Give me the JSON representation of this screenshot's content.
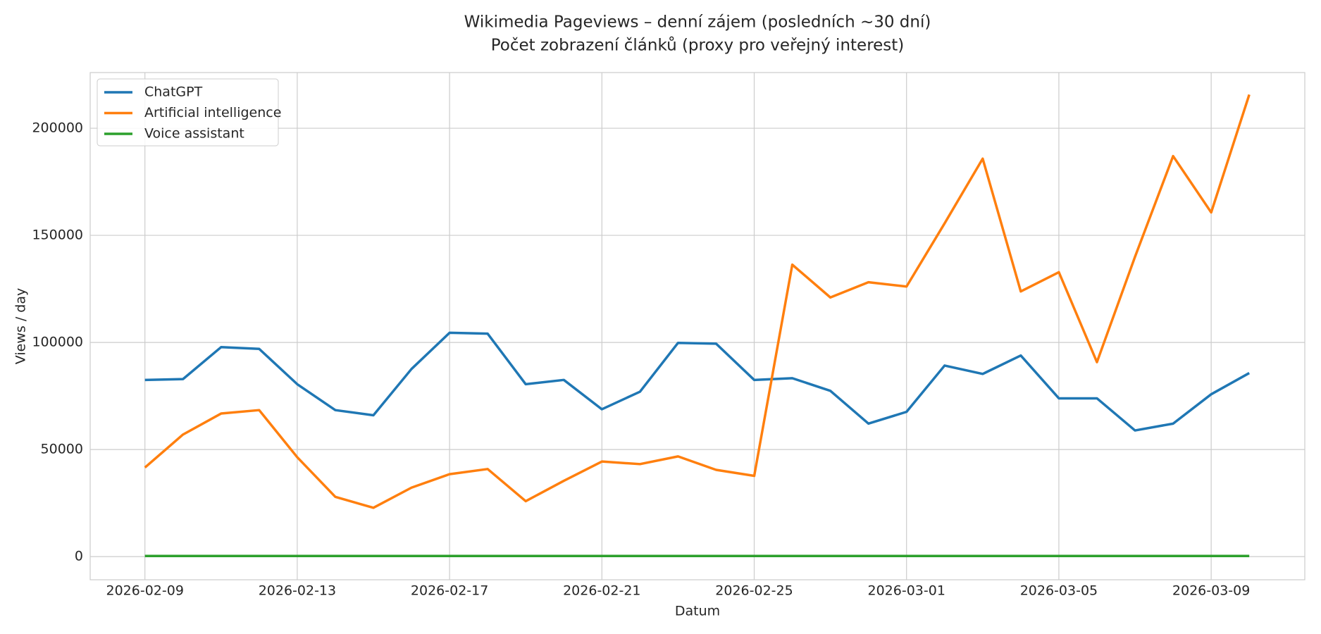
{
  "chart_data": {
    "type": "line",
    "title": "Wikimedia Pageviews – denní zájem (posledních ~30 dní)",
    "subtitle": "Počet zobrazení článků (proxy pro veřejný interest)",
    "x_label": "Datum",
    "y_label": "Views / day",
    "x": [
      "2026-02-09",
      "2026-02-10",
      "2026-02-11",
      "2026-02-12",
      "2026-02-13",
      "2026-02-14",
      "2026-02-15",
      "2026-02-16",
      "2026-02-17",
      "2026-02-18",
      "2026-02-19",
      "2026-02-20",
      "2026-02-21",
      "2026-02-22",
      "2026-02-23",
      "2026-02-24",
      "2026-02-25",
      "2026-02-26",
      "2026-02-27",
      "2026-02-28",
      "2026-03-01",
      "2026-03-02",
      "2026-03-03",
      "2026-03-04",
      "2026-03-05",
      "2026-03-06",
      "2026-03-07",
      "2026-03-08",
      "2026-03-09",
      "2026-03-10"
    ],
    "series": [
      {
        "name": "ChatGPT",
        "color": "#1f77b4",
        "values": [
          82500,
          82900,
          97800,
          97000,
          80500,
          68400,
          66000,
          87600,
          104500,
          104100,
          80500,
          82500,
          68800,
          77000,
          99800,
          99400,
          82500,
          83300,
          77400,
          62100,
          67600,
          89200,
          85300,
          93900,
          73900,
          73900,
          58900,
          62100,
          75800,
          85700
        ]
      },
      {
        "name": "Artificial intelligence",
        "color": "#ff7f0e",
        "values": [
          41600,
          57000,
          66800,
          68400,
          46400,
          27900,
          22800,
          32200,
          38500,
          40900,
          25900,
          35400,
          44400,
          43200,
          46800,
          40500,
          37700,
          136300,
          121000,
          128100,
          126100,
          155600,
          185800,
          123800,
          132800,
          90800,
          140000,
          187000,
          160700,
          215700
        ]
      },
      {
        "name": "Voice assistant",
        "color": "#2ca02c",
        "values": [
          300,
          300,
          300,
          300,
          300,
          300,
          300,
          300,
          300,
          300,
          300,
          300,
          300,
          300,
          300,
          300,
          300,
          300,
          300,
          300,
          300,
          300,
          300,
          300,
          300,
          300,
          300,
          300,
          300,
          300
        ]
      }
    ],
    "xlim": [
      "2026-02-07 13:30",
      "2026-03-11 11:00"
    ],
    "xticks": [
      "2026-02-09",
      "2026-02-13",
      "2026-02-17",
      "2026-02-21",
      "2026-02-25",
      "2026-03-01",
      "2026-03-05",
      "2026-03-09"
    ],
    "ylim": [
      -10800,
      226000
    ],
    "yticks": [
      0,
      50000,
      100000,
      150000,
      200000
    ],
    "grid": true,
    "legend": "upper left"
  }
}
